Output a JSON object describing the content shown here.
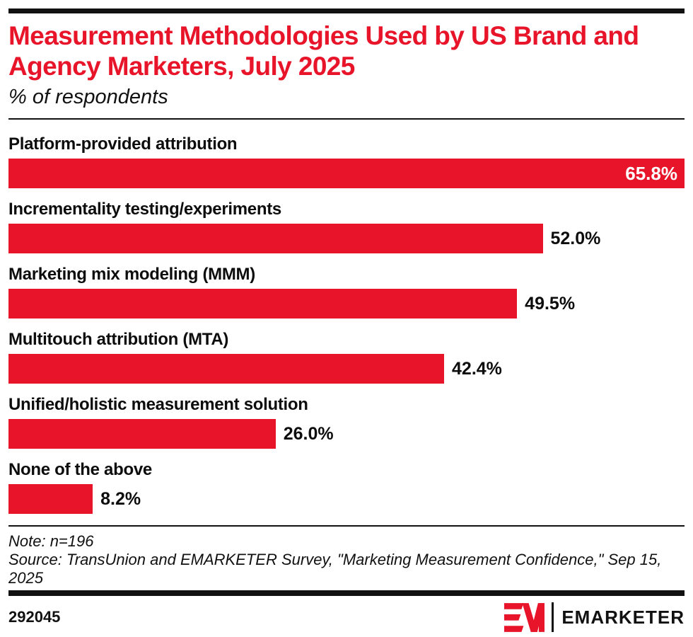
{
  "header": {
    "title": "Measurement Methodologies Used by US Brand and Agency Marketers, July 2025",
    "subtitle": "% of respondents"
  },
  "chart_data": {
    "type": "bar",
    "orientation": "horizontal",
    "unit": "% of respondents",
    "categories": [
      "Platform-provided attribution",
      "Incrementality testing/experiments",
      "Marketing mix modeling (MMM)",
      "Multitouch attribution (MTA)",
      "Unified/holistic measurement solution",
      "None of the above"
    ],
    "values": [
      65.8,
      52.0,
      49.5,
      42.4,
      26.0,
      8.2
    ],
    "value_labels": [
      "65.8%",
      "52.0%",
      "49.5%",
      "42.4%",
      "26.0%",
      "8.2%"
    ],
    "xlim": [
      0,
      65.8
    ],
    "grid": false,
    "legend": "none",
    "bar_color": "#e8152a",
    "value_label_inside_threshold": 0.85
  },
  "footer": {
    "note": "Note: n=196",
    "source": "Source: TransUnion and EMARKETER Survey, \"Marketing Measurement Confidence,\" Sep 15, 2025",
    "chart_id": "292045",
    "brand": "EMARKETER"
  },
  "colors": {
    "accent": "#e8152a",
    "text": "#0d0d0d",
    "rule": "#111111",
    "background": "#ffffff"
  },
  "icons": {
    "em_monogram": "em-monogram-icon"
  }
}
